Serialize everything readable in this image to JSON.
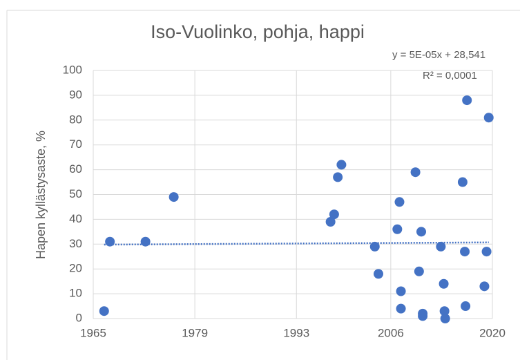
{
  "chart_data": {
    "type": "scatter",
    "title": "Iso-Vuolinko, pohja, happi",
    "y_label": "Hapen kyllästysaste, %",
    "series": [
      {
        "color": "#4472c4",
        "x": [
          1966.5,
          1967.3,
          1972.2,
          1976.1,
          1997.7,
          1998.2,
          1998.7,
          1999.2,
          2003.8,
          2004.3,
          2006.9,
          2007.2,
          2007.4,
          2007.4,
          2009.4,
          2009.9,
          2010.2,
          2010.4,
          2010.4,
          2012.9,
          2013.3,
          2013.4,
          2013.5,
          2015.9,
          2016.2,
          2016.3,
          2016.5,
          2018.9,
          2019.2,
          2019.5
        ],
        "values": [
          3,
          31,
          31,
          49,
          39,
          42,
          57,
          62,
          29,
          18,
          36,
          47,
          11,
          4,
          59,
          19,
          35,
          1,
          2,
          29,
          14,
          3,
          0,
          55,
          27,
          5,
          88,
          13,
          27,
          81
        ]
      }
    ],
    "trendline": {
      "x": [
        1966.5,
        2019.5
      ],
      "values": [
        29.8,
        30.7
      ],
      "color": "#4472c4",
      "equation": "y = 5E-05x + 28,541",
      "r2": "R² = 0,0001"
    },
    "xlim": [
      1965,
      2020
    ],
    "xticks": [
      1965,
      1979,
      1993,
      2006,
      2020
    ],
    "ylim": [
      0,
      100
    ],
    "yticks": [
      0,
      10,
      20,
      30,
      40,
      50,
      60,
      70,
      80,
      90,
      100
    ],
    "grid": true
  }
}
